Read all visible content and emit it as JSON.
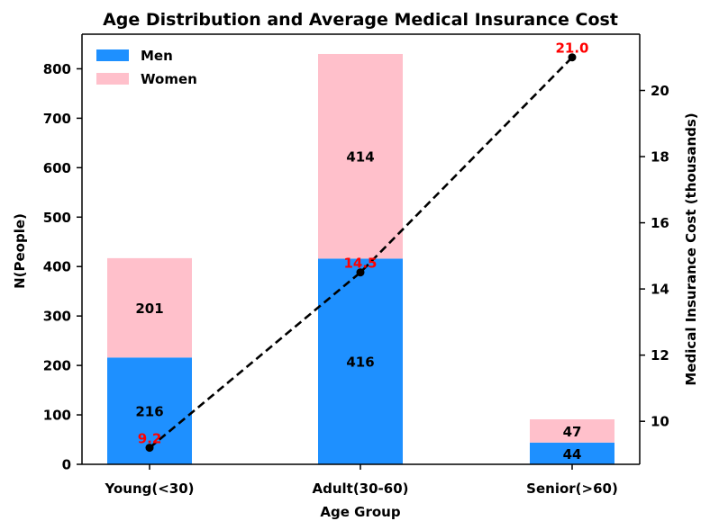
{
  "chart_data": {
    "type": "bar",
    "title": "Age Distribution and Average Medical Insurance Cost",
    "xlabel": "Age Group",
    "ylabel": "N(People)",
    "y2label": "Medical Insurance Cost (thousands)",
    "categories": [
      "Young(<30)",
      "Adult(30-60)",
      "Senior(>60)"
    ],
    "series": [
      {
        "name": "Men",
        "values": [
          216,
          416,
          44
        ],
        "color": "#1e90ff"
      },
      {
        "name": "Women",
        "values": [
          201,
          414,
          47
        ],
        "color": "#ffc0cb"
      }
    ],
    "line_series": {
      "values": [
        9.2,
        14.5,
        21.0
      ],
      "labels": [
        "9.2",
        "14.5",
        "21.0"
      ],
      "color": "#000000",
      "label_color": "#ff0000",
      "style": "dashed"
    },
    "ylim": [
      0,
      870
    ],
    "y_ticks": [
      0,
      100,
      200,
      300,
      400,
      500,
      600,
      700,
      800
    ],
    "y2lim": [
      8.7,
      21.7
    ],
    "y2_ticks": [
      10,
      12,
      14,
      16,
      18,
      20
    ],
    "stacked": true,
    "legend_position": "top-left",
    "grid": false
  }
}
